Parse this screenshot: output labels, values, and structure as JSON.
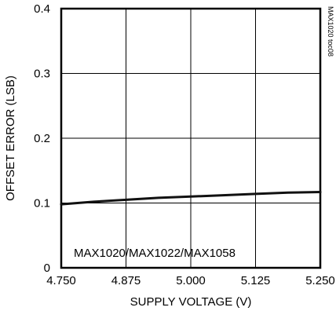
{
  "chart_data": {
    "type": "line",
    "xlabel": "SUPPLY VOLTAGE (V)",
    "ylabel": "OFFSET ERROR (LSB)",
    "xlim": [
      4.75,
      5.25
    ],
    "ylim": [
      0,
      0.4
    ],
    "x_ticks": [
      "4.750",
      "4.875",
      "5.000",
      "5.125",
      "5.250"
    ],
    "y_ticks": [
      "0",
      "0.1",
      "0.2",
      "0.3",
      "0.4"
    ],
    "grid": true,
    "annotation": "MAX1020/MAX1022/MAX1058",
    "side_note": "MAX1020 toc08",
    "series": [
      {
        "x": [
          4.75,
          4.8125,
          4.875,
          4.9375,
          5.0,
          5.0625,
          5.125,
          5.1875,
          5.25
        ],
        "y": [
          0.098,
          0.102,
          0.105,
          0.108,
          0.11,
          0.112,
          0.114,
          0.116,
          0.117
        ]
      }
    ]
  }
}
